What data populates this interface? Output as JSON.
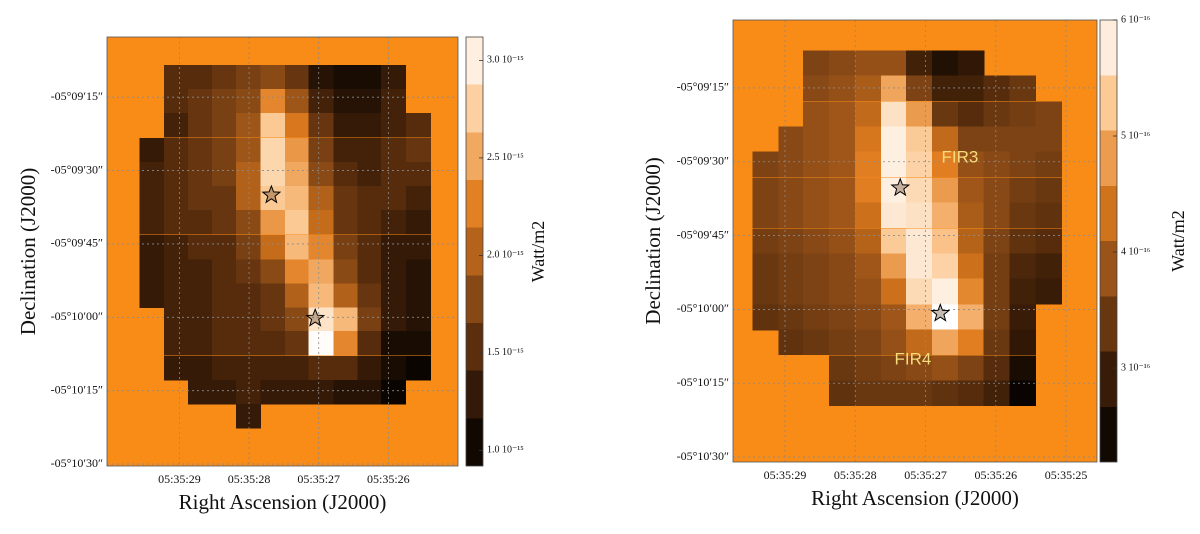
{
  "chart_data": [
    {
      "type": "heatmap",
      "xlabel": "Right Ascension (J2000)",
      "ylabel": "Declination (J2000)",
      "colorbar_label": "Watt/m2",
      "x": [
        29.4,
        29.05,
        28.7,
        28.36,
        28.01,
        27.66,
        27.31,
        26.97,
        26.61,
        26.27,
        25.93,
        25.57
      ],
      "y": [
        -18550.9,
        -18555.8,
        -18560.7,
        -18565.8,
        -18570.7,
        -18575.6,
        -18580.5,
        -18585.6,
        -18590.6,
        -18595.5,
        -18600.4,
        -18605.3,
        -18610.4,
        -18615.3,
        -18620.2
      ],
      "values": [
        [
          null,
          1.5e-15,
          1.5e-15,
          1.6e-15,
          1.7e-15,
          1.8e-15,
          1.6e-15,
          1.2e-15,
          1.1e-15,
          1.1e-15,
          1.3e-15,
          null
        ],
        [
          null,
          1.5e-15,
          1.6e-15,
          1.7e-15,
          1.8e-15,
          2.3e-15,
          1.9e-15,
          1.4e-15,
          1.2e-15,
          1.2e-15,
          1.4e-15,
          null
        ],
        [
          null,
          1.4e-15,
          1.6e-15,
          1.7e-15,
          1.9e-15,
          2.7e-15,
          2.2e-15,
          1.6e-15,
          1.3e-15,
          1.3e-15,
          1.4e-15,
          1.5e-15
        ],
        [
          1.3e-15,
          1.5e-15,
          1.6e-15,
          1.7e-15,
          1.9e-15,
          2.8e-15,
          2.4e-15,
          1.7e-15,
          1.4e-15,
          1.4e-15,
          1.5e-15,
          1.6e-15
        ],
        [
          1.4e-15,
          1.5e-15,
          1.6e-15,
          1.7e-15,
          2e-15,
          2.8e-15,
          2.5e-15,
          1.8e-15,
          1.5e-15,
          1.4e-15,
          1.5e-15,
          1.5e-15
        ],
        [
          1.4e-15,
          1.5e-15,
          1.6e-15,
          1.6e-15,
          2e-15,
          2.7e-15,
          2.6e-15,
          2e-15,
          1.6e-15,
          1.5e-15,
          1.5e-15,
          1.4e-15
        ],
        [
          1.4e-15,
          1.5e-15,
          1.5e-15,
          1.6e-15,
          1.8e-15,
          2.4e-15,
          2.7e-15,
          2.1e-15,
          1.6e-15,
          1.5e-15,
          1.4e-15,
          1.3e-15
        ],
        [
          1.3e-15,
          1.4e-15,
          1.5e-15,
          1.5e-15,
          1.7e-15,
          2.1e-15,
          2.6e-15,
          2.3e-15,
          1.7e-15,
          1.5e-15,
          1.3e-15,
          1.3e-15
        ],
        [
          1.3e-15,
          1.4e-15,
          1.4e-15,
          1.5e-15,
          1.6e-15,
          1.8e-15,
          2.3e-15,
          2.5e-15,
          1.8e-15,
          1.5e-15,
          1.3e-15,
          1.2e-15
        ],
        [
          1.3e-15,
          1.4e-15,
          1.4e-15,
          1.5e-15,
          1.5e-15,
          1.6e-15,
          2e-15,
          2.6e-15,
          2e-15,
          1.6e-15,
          1.3e-15,
          1.2e-15
        ],
        [
          null,
          1.4e-15,
          1.4e-15,
          1.5e-15,
          1.5e-15,
          1.6e-15,
          1.8e-15,
          2.9e-15,
          2.6e-15,
          1.7e-15,
          1.3e-15,
          1.2e-15
        ],
        [
          null,
          1.4e-15,
          1.4e-15,
          1.5e-15,
          1.5e-15,
          1.5e-15,
          1.6e-15,
          3.1e-15,
          2.3e-15,
          1.5e-15,
          1.1e-15,
          1.1e-15
        ],
        [
          null,
          1.3e-15,
          1.3e-15,
          1.4e-15,
          1.4e-15,
          1.4e-15,
          1.4e-15,
          1.5e-15,
          1.5e-15,
          1.3e-15,
          1.1e-15,
          1e-15
        ],
        [
          null,
          null,
          1.3e-15,
          1.3e-15,
          1.4e-15,
          1.3e-15,
          1.3e-15,
          1.3e-15,
          1.2e-15,
          1.2e-15,
          1e-15,
          null
        ],
        [
          null,
          null,
          null,
          null,
          1.3e-15,
          null,
          null,
          null,
          null,
          null,
          null,
          null
        ]
      ],
      "xlim": [
        30.04,
        25.0
      ],
      "ylim": [
        -18630.4,
        -18542.7
      ],
      "xticks": [
        {
          "value": 29,
          "label": "05:35:29"
        },
        {
          "value": 28,
          "label": "05:35:28"
        },
        {
          "value": 27,
          "label": "05:35:27"
        },
        {
          "value": 26,
          "label": "05:35:26"
        }
      ],
      "yticks": [
        {
          "value": -18555,
          "label": "-05°09′15″"
        },
        {
          "value": -18570,
          "label": "-05°09′30″"
        },
        {
          "value": -18585,
          "label": "-05°09′45″"
        },
        {
          "value": -18600,
          "label": "-05°10′00″"
        },
        {
          "value": -18615,
          "label": "-05°10′15″"
        },
        {
          "value": -18630,
          "label": "-05°10′30″"
        }
      ],
      "clim": [
        9.2e-16,
        3.12e-15
      ],
      "cticks": [
        {
          "value": 1e-15,
          "label": "1.0 10⁻¹⁵"
        },
        {
          "value": 1.5e-15,
          "label": "1.5 10⁻¹⁵"
        },
        {
          "value": 2e-15,
          "label": "2.0 10⁻¹⁵"
        },
        {
          "value": 2.5e-15,
          "label": "2.5 10⁻¹⁵"
        },
        {
          "value": 3e-15,
          "label": "3.0 10⁻¹⁵"
        }
      ],
      "colorbar_steps": 9,
      "colormap": [
        "#000000",
        "#3d1e08",
        "#8a4a16",
        "#e07c1e",
        "#fbc68e",
        "#ffffff"
      ],
      "nan_color": "#f98b17",
      "grid": true,
      "markers": [
        {
          "x": 27.68,
          "y": -18575.0
        },
        {
          "x": 27.05,
          "y": -18600.2
        }
      ],
      "annotations": []
    },
    {
      "type": "heatmap",
      "xlabel": "Right Ascension (J2000)",
      "ylabel": "Declination (J2000)",
      "colorbar_label": "Watt/m2",
      "x": [
        29.28,
        28.91,
        28.56,
        28.19,
        27.82,
        27.45,
        27.09,
        26.72,
        26.35,
        25.99,
        25.62,
        25.25
      ],
      "y": [
        -18549.9,
        -18555.0,
        -18560.3,
        -18565.4,
        -18570.5,
        -18575.8,
        -18580.8,
        -18586.1,
        -18591.2,
        -18596.3,
        -18601.6,
        -18606.6,
        -18611.9,
        -18617.0
      ],
      "values": [
        [
          null,
          null,
          3.6e-16,
          3.7e-16,
          3.8e-16,
          3.8e-16,
          3e-16,
          2.6e-16,
          2.8e-16,
          null,
          null,
          null
        ],
        [
          null,
          null,
          3.7e-16,
          3.8e-16,
          4e-16,
          4.9e-16,
          3.6e-16,
          3e-16,
          3e-16,
          3.2e-16,
          3.4e-16,
          null
        ],
        [
          null,
          null,
          3.8e-16,
          3.9e-16,
          4.2e-16,
          5.6e-16,
          4.8e-16,
          3.4e-16,
          3.2e-16,
          3.4e-16,
          3.5e-16,
          3.6e-16
        ],
        [
          null,
          3.7e-16,
          3.8e-16,
          3.9e-16,
          4.4e-16,
          5.8e-16,
          5.3e-16,
          4.2e-16,
          3.6e-16,
          3.6e-16,
          3.6e-16,
          3.6e-16
        ],
        [
          3.6e-16,
          3.7e-16,
          3.8e-16,
          3.9e-16,
          4.5e-16,
          5.8e-16,
          5.4e-16,
          4.5e-16,
          3.8e-16,
          3.7e-16,
          3.6e-16,
          3.5e-16
        ],
        [
          3.6e-16,
          3.7e-16,
          3.8e-16,
          3.9e-16,
          4.5e-16,
          5.8e-16,
          5.5e-16,
          4.8e-16,
          3.9e-16,
          3.7e-16,
          3.5e-16,
          3.4e-16
        ],
        [
          3.6e-16,
          3.7e-16,
          3.8e-16,
          3.9e-16,
          4.3e-16,
          5.7e-16,
          5.6e-16,
          5e-16,
          4e-16,
          3.7e-16,
          3.4e-16,
          3.3e-16
        ],
        [
          3.5e-16,
          3.6e-16,
          3.7e-16,
          3.8e-16,
          4.1e-16,
          5.3e-16,
          5.7e-16,
          5.2e-16,
          4.1e-16,
          3.6e-16,
          3.3e-16,
          3.2e-16
        ],
        [
          3.4e-16,
          3.5e-16,
          3.6e-16,
          3.7e-16,
          3.9e-16,
          4.8e-16,
          5.7e-16,
          5.4e-16,
          4.3e-16,
          3.5e-16,
          3.1e-16,
          3e-16
        ],
        [
          3.4e-16,
          3.5e-16,
          3.6e-16,
          3.7e-16,
          3.8e-16,
          4.3e-16,
          5.5e-16,
          5.8e-16,
          4.6e-16,
          3.5e-16,
          3e-16,
          2.9e-16
        ],
        [
          3.3e-16,
          3.4e-16,
          3.5e-16,
          3.6e-16,
          3.7e-16,
          3.9e-16,
          5e-16,
          6e-16,
          5e-16,
          3.5e-16,
          2.9e-16,
          null
        ],
        [
          null,
          3.3e-16,
          3.4e-16,
          3.5e-16,
          3.6e-16,
          3.8e-16,
          4.2e-16,
          4.9e-16,
          4.5e-16,
          3.4e-16,
          2.8e-16,
          null
        ],
        [
          null,
          null,
          null,
          3.4e-16,
          3.5e-16,
          3.6e-16,
          3.7e-16,
          3.8e-16,
          3.6e-16,
          3.2e-16,
          2.5e-16,
          null
        ],
        [
          null,
          null,
          null,
          3.3e-16,
          3.4e-16,
          3.4e-16,
          3.4e-16,
          3.3e-16,
          3.2e-16,
          3e-16,
          2.3e-16,
          null
        ]
      ],
      "xlim": [
        29.74,
        24.56
      ],
      "ylim": [
        -18631.0,
        -18541.2
      ],
      "xticks": [
        {
          "value": 29,
          "label": "05:35:29"
        },
        {
          "value": 28,
          "label": "05:35:28"
        },
        {
          "value": 27,
          "label": "05:35:27"
        },
        {
          "value": 26,
          "label": "05:35:26"
        },
        {
          "value": 25,
          "label": "05:35:25"
        }
      ],
      "yticks": [
        {
          "value": -18555,
          "label": "-05°09′15″"
        },
        {
          "value": -18570,
          "label": "-05°09′30″"
        },
        {
          "value": -18585,
          "label": "-05°09′45″"
        },
        {
          "value": -18600,
          "label": "-05°10′00″"
        },
        {
          "value": -18615,
          "label": "-05°10′15″"
        },
        {
          "value": -18630,
          "label": "-05°10′30″"
        }
      ],
      "clim": [
        2.19e-16,
        6e-16
      ],
      "cticks": [
        {
          "value": 3e-16,
          "label": "3 10⁻¹⁶"
        },
        {
          "value": 4e-16,
          "label": "4 10⁻¹⁶"
        },
        {
          "value": 5e-16,
          "label": "5 10⁻¹⁶"
        },
        {
          "value": 6e-16,
          "label": "6 10⁻¹⁶"
        }
      ],
      "colorbar_steps": 8,
      "colormap": [
        "#000000",
        "#3d1e08",
        "#8a4a16",
        "#e07c1e",
        "#fbc68e",
        "#ffffff"
      ],
      "nan_color": "#f98b17",
      "grid": true,
      "markers": [
        {
          "x": 27.36,
          "y": -18575.3
        },
        {
          "x": 26.79,
          "y": -18600.8
        }
      ],
      "annotations": [
        {
          "text": "FIR3",
          "x": 26.51,
          "y": -18569.2
        },
        {
          "text": "FIR4",
          "x": 27.18,
          "y": -18610.3
        }
      ]
    }
  ]
}
